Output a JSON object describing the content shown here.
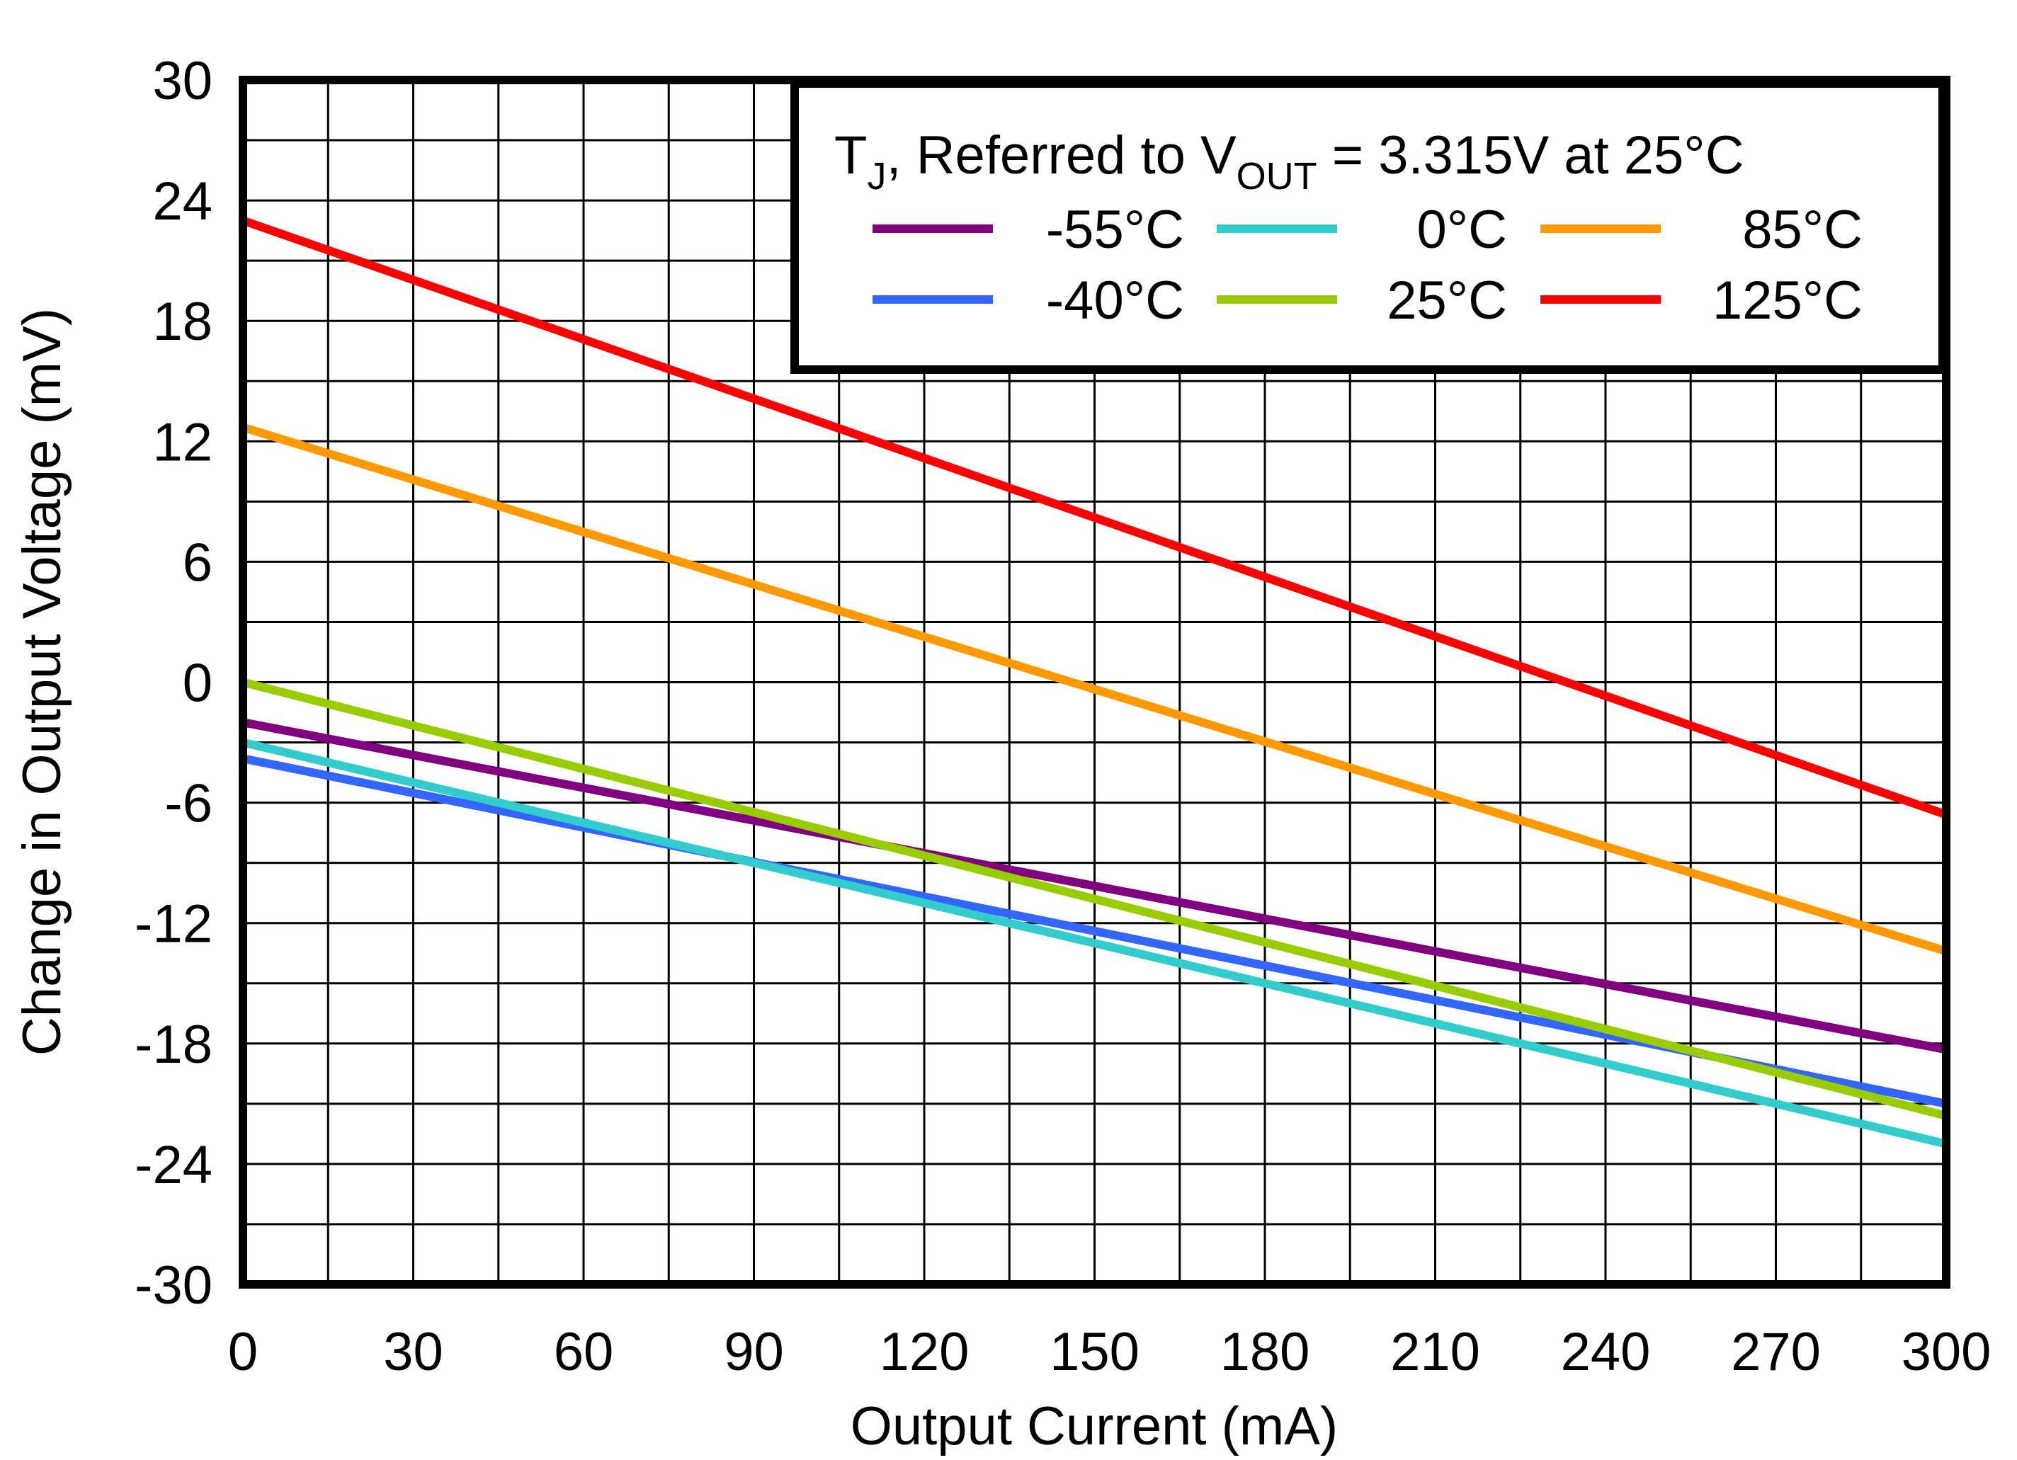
{
  "chart_data": {
    "type": "line",
    "title": "",
    "xlabel": "Output Current (mA)",
    "ylabel": "Change in Output Voltage (mV)",
    "xlim": [
      0,
      300
    ],
    "ylim": [
      -30,
      30
    ],
    "x_ticks": [
      "0",
      "30",
      "60",
      "90",
      "120",
      "150",
      "180",
      "210",
      "240",
      "270",
      "300"
    ],
    "y_ticks": [
      "30",
      "24",
      "18",
      "12",
      "6",
      "0",
      "-6",
      "-12",
      "-18",
      "-24",
      "-30"
    ],
    "grid": true,
    "legend": {
      "position": "top-right",
      "title_prefix": "T",
      "title_sub1": "J",
      "title_mid": ", Referred to V",
      "title_sub2": "OUT",
      "title_suffix": " = 3.315V at 25°C"
    },
    "x": [
      0,
      300
    ],
    "series": [
      {
        "name": "-55°C",
        "color": "#800080",
        "values": [
          -2.0,
          -18.3
        ]
      },
      {
        "name": "-40°C",
        "color": "#3366FF",
        "values": [
          -3.8,
          -21.0
        ]
      },
      {
        "name": "0°C",
        "color": "#33CCCC",
        "values": [
          -3.0,
          -23.0
        ]
      },
      {
        "name": "25°C",
        "color": "#99CC00",
        "values": [
          0.0,
          -21.6
        ]
      },
      {
        "name": "85°C",
        "color": "#FF9900",
        "values": [
          12.7,
          -13.4
        ]
      },
      {
        "name": "125°C",
        "color": "#FF0000",
        "values": [
          23.0,
          -6.6
        ]
      }
    ]
  }
}
